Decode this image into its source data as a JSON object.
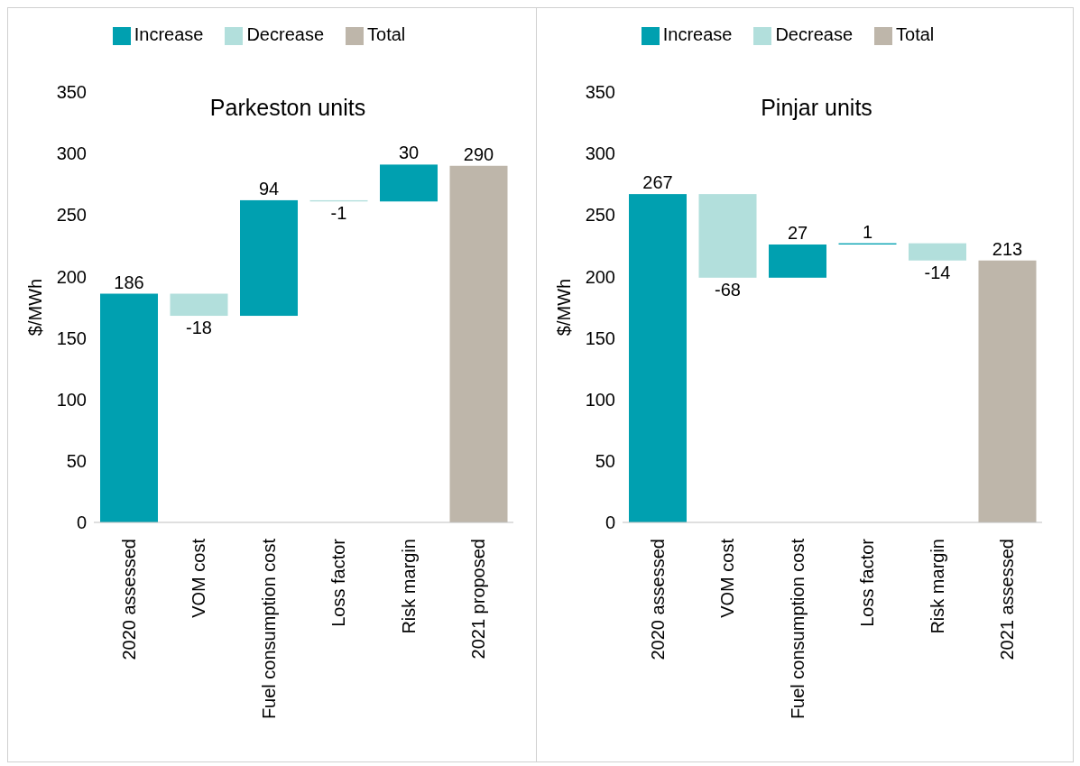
{
  "chart_data": [
    {
      "type": "bar",
      "title": "Parkeston units",
      "ylabel": "$/MWh",
      "categories": [
        "2020 assessed",
        "VOM cost",
        "Fuel consumption cost",
        "Loss factor",
        "Risk margin",
        "2021 proposed"
      ],
      "series": [
        {
          "name": "Increase",
          "color": "#00a0b0",
          "values": [
            186,
            null,
            94,
            null,
            30,
            null
          ],
          "base": [
            0,
            null,
            168,
            null,
            261,
            null
          ]
        },
        {
          "name": "Decrease",
          "color": "#b2dfdc",
          "values": [
            null,
            -18,
            null,
            -1,
            null,
            null
          ],
          "base": [
            null,
            186,
            null,
            262,
            null,
            null
          ]
        },
        {
          "name": "Total",
          "color": "#beb6aa",
          "values": [
            null,
            null,
            null,
            null,
            null,
            290
          ],
          "base": [
            null,
            null,
            null,
            null,
            null,
            0
          ]
        }
      ],
      "ylim": [
        0,
        350
      ],
      "yticks": [
        0,
        50,
        100,
        150,
        200,
        250,
        300,
        350
      ],
      "grid": false,
      "legend": "top",
      "data_labels": true
    },
    {
      "type": "bar",
      "title": "Pinjar units",
      "ylabel": "$/MWh",
      "categories": [
        "2020 assessed",
        "VOM cost",
        "Fuel consumption cost",
        "Loss factor",
        "Risk margin",
        "2021 assessed"
      ],
      "series": [
        {
          "name": "Increase",
          "color": "#00a0b0",
          "values": [
            267,
            null,
            27,
            1,
            null,
            null
          ],
          "base": [
            0,
            null,
            199,
            226,
            null,
            null
          ]
        },
        {
          "name": "Decrease",
          "color": "#b2dfdc",
          "values": [
            null,
            -68,
            null,
            null,
            -14,
            null
          ],
          "base": [
            null,
            267,
            null,
            null,
            227,
            null
          ]
        },
        {
          "name": "Total",
          "color": "#beb6aa",
          "values": [
            null,
            null,
            null,
            null,
            null,
            213
          ],
          "base": [
            null,
            null,
            null,
            null,
            null,
            0
          ]
        }
      ],
      "ylim": [
        0,
        350
      ],
      "yticks": [
        0,
        50,
        100,
        150,
        200,
        250,
        300,
        350
      ],
      "grid": false,
      "legend": "top",
      "data_labels": true
    }
  ]
}
